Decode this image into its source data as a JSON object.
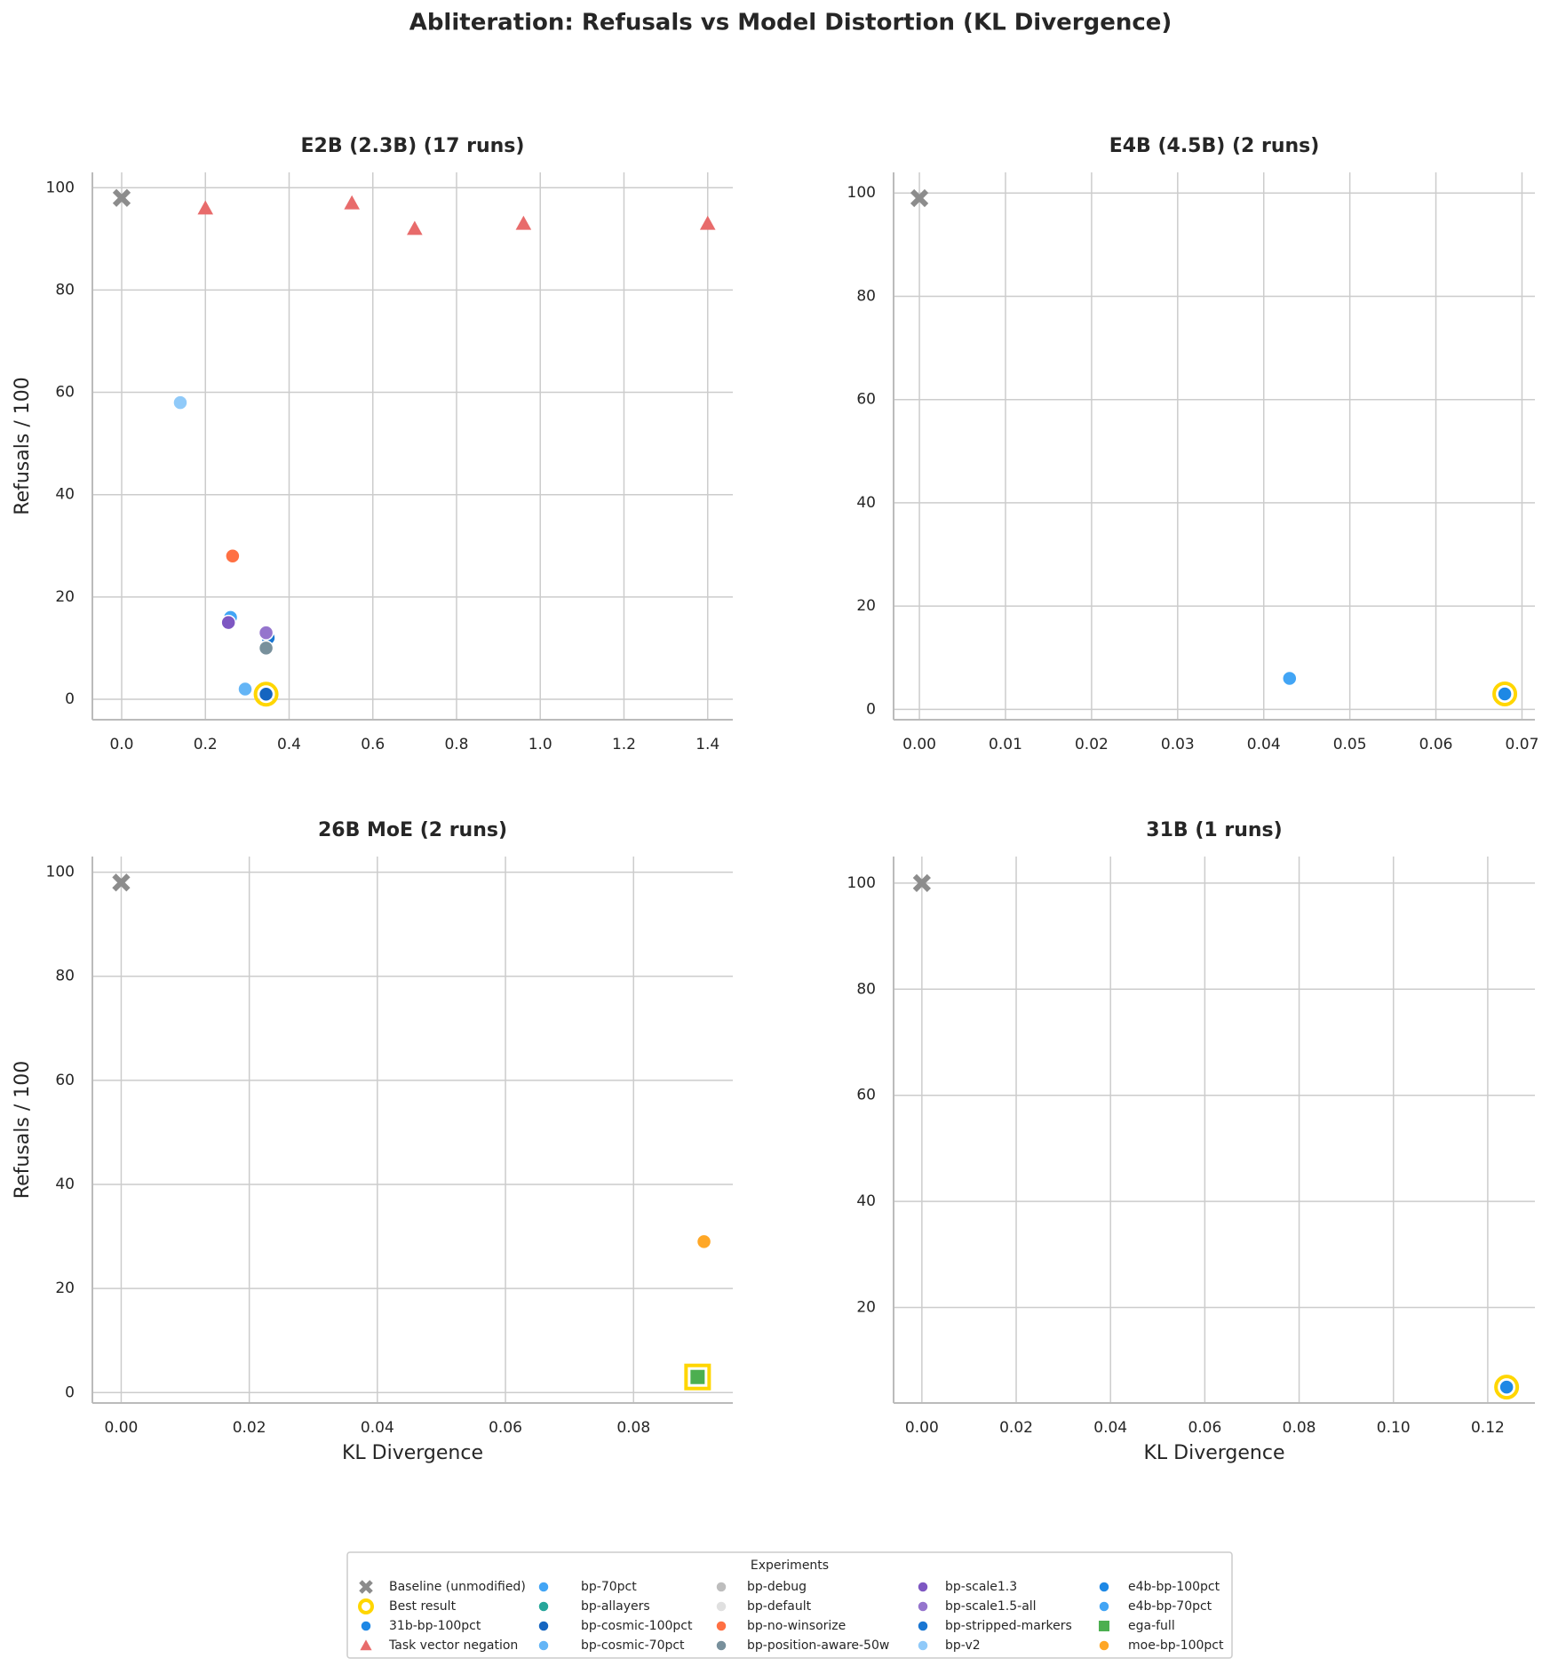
{
  "title": "Abliteration: Refusals vs Model Distortion (KL Divergence)",
  "legend": {
    "title": "Experiments",
    "entries": [
      {
        "name": "Baseline (unmodified)",
        "color": "#8c8c8c",
        "marker": "x"
      },
      {
        "name": "Best result",
        "color": "#ffd600",
        "marker": "ring"
      },
      {
        "name": "31b-bp-100pct",
        "color": "#1e88e5",
        "marker": "circle"
      },
      {
        "name": "Task vector negation",
        "color": "#e86b6b",
        "marker": "triangle"
      },
      {
        "name": "bp-70pct",
        "color": "#42a5f5",
        "marker": "circle"
      },
      {
        "name": "bp-allayers",
        "color": "#26a69a",
        "marker": "circle"
      },
      {
        "name": "bp-cosmic-100pct",
        "color": "#1565c0",
        "marker": "circle"
      },
      {
        "name": "bp-cosmic-70pct",
        "color": "#64b5f6",
        "marker": "circle"
      },
      {
        "name": "bp-debug",
        "color": "#bdbdbd",
        "marker": "circle"
      },
      {
        "name": "bp-default",
        "color": "#e0e0e0",
        "marker": "circle"
      },
      {
        "name": "bp-no-winsorize",
        "color": "#ff7043",
        "marker": "circle"
      },
      {
        "name": "bp-position-aware-50w",
        "color": "#78909c",
        "marker": "circle"
      },
      {
        "name": "bp-scale1.3",
        "color": "#7e57c2",
        "marker": "circle"
      },
      {
        "name": "bp-scale1.5-all",
        "color": "#9575cd",
        "marker": "circle"
      },
      {
        "name": "bp-stripped-markers",
        "color": "#1976d2",
        "marker": "circle"
      },
      {
        "name": "bp-v2",
        "color": "#90caf9",
        "marker": "circle"
      },
      {
        "name": "e4b-bp-100pct",
        "color": "#1e88e5",
        "marker": "circle"
      },
      {
        "name": "e4b-bp-70pct",
        "color": "#42a5f5",
        "marker": "circle"
      },
      {
        "name": "ega-full",
        "color": "#4caf50",
        "marker": "square"
      },
      {
        "name": "moe-bp-100pct",
        "color": "#ffa726",
        "marker": "circle"
      }
    ]
  },
  "chart_data": [
    {
      "type": "scatter",
      "title": "E2B (2.3B)  (17 runs)",
      "ylabel": "Refusals / 100",
      "xlim": [
        -0.07,
        1.46
      ],
      "ylim": [
        -4,
        103
      ],
      "xticks": [
        {
          "value": 0,
          "label": "0.0"
        },
        0.2,
        0.4,
        0.6,
        0.8,
        {
          "value": 1,
          "label": "1.0"
        },
        1.2,
        1.4
      ],
      "yticks": [
        0,
        20,
        40,
        60,
        80,
        100
      ],
      "grid": true,
      "series": [
        {
          "color": "#e86b6b",
          "marker": "triangle",
          "x": [
            0.2,
            0.55,
            0.7,
            0.96,
            1.4
          ],
          "values": [
            96,
            97,
            92,
            93,
            93
          ]
        },
        {
          "color": "#90caf9",
          "marker": "circle",
          "x": [
            0.14
          ],
          "values": [
            58
          ]
        },
        {
          "color": "#ff7043",
          "marker": "circle",
          "x": [
            0.265
          ],
          "values": [
            28
          ]
        },
        {
          "color": "#26a69a",
          "marker": "circle",
          "x": [
            0.26
          ],
          "values": [
            16
          ]
        },
        {
          "color": "#42a5f5",
          "marker": "circle",
          "x": [
            0.26
          ],
          "values": [
            16
          ]
        },
        {
          "color": "#7e57c2",
          "marker": "circle",
          "x": [
            0.255
          ],
          "values": [
            15
          ]
        },
        {
          "color": "#1976d2",
          "marker": "circle",
          "x": [
            0.35
          ],
          "values": [
            12
          ]
        },
        {
          "color": "#9575cd",
          "marker": "circle",
          "x": [
            0.345
          ],
          "values": [
            13
          ]
        },
        {
          "color": "#78909c",
          "marker": "circle",
          "x": [
            0.345
          ],
          "values": [
            10
          ]
        },
        {
          "color": "#64b5f6",
          "marker": "circle",
          "x": [
            0.295
          ],
          "values": [
            2
          ]
        },
        {
          "color": "#bdbdbd",
          "marker": "circle",
          "x": [
            0.345
          ],
          "values": [
            1
          ]
        },
        {
          "color": "#e0e0e0",
          "marker": "circle",
          "x": [
            0.345
          ],
          "values": [
            1
          ]
        },
        {
          "color": "#1565c0",
          "marker": "circle",
          "x": [
            0.345
          ],
          "values": [
            1
          ],
          "best": true
        },
        {
          "color": "#8c8c8c",
          "marker": "x",
          "x": [
            0
          ],
          "values": [
            98
          ]
        }
      ]
    },
    {
      "type": "scatter",
      "title": "E4B (4.5B)  (2 runs)",
      "xlim": [
        -0.003,
        0.0715
      ],
      "ylim": [
        -2,
        104
      ],
      "xticks": [
        {
          "value": 0,
          "label": "0.00"
        },
        0.01,
        0.02,
        0.03,
        0.04,
        0.05,
        0.06,
        0.07
      ],
      "yticks": [
        0,
        20,
        40,
        60,
        80,
        100
      ],
      "grid": true,
      "series": [
        {
          "color": "#42a5f5",
          "marker": "circle",
          "x": [
            0.043
          ],
          "values": [
            6
          ]
        },
        {
          "color": "#1e88e5",
          "marker": "circle",
          "x": [
            0.068
          ],
          "values": [
            3
          ],
          "best": true
        },
        {
          "color": "#8c8c8c",
          "marker": "x",
          "x": [
            0
          ],
          "values": [
            99
          ]
        }
      ]
    },
    {
      "type": "scatter",
      "title": "26B MoE  (2 runs)",
      "xlabel": "KL Divergence",
      "ylabel": "Refusals / 100",
      "xlim": [
        -0.0045,
        0.0955
      ],
      "ylim": [
        -2,
        103
      ],
      "xticks": [
        {
          "value": 0,
          "label": "0.00"
        },
        0.02,
        0.04,
        0.06,
        0.08
      ],
      "yticks": [
        0,
        20,
        40,
        60,
        80,
        100
      ],
      "grid": true,
      "series": [
        {
          "color": "#ffa726",
          "marker": "circle",
          "x": [
            0.091
          ],
          "values": [
            29
          ]
        },
        {
          "color": "#4caf50",
          "marker": "square",
          "x": [
            0.09
          ],
          "values": [
            3
          ],
          "best": true
        },
        {
          "color": "#8c8c8c",
          "marker": "x",
          "x": [
            0
          ],
          "values": [
            98
          ]
        }
      ]
    },
    {
      "type": "scatter",
      "title": "31B  (1 runs)",
      "xlabel": "KL Divergence",
      "xlim": [
        -0.006,
        0.13
      ],
      "ylim": [
        2,
        105
      ],
      "xticks": [
        {
          "value": 0,
          "label": "0.00"
        },
        0.02,
        0.04,
        0.06,
        0.08,
        {
          "value": 0.1,
          "label": "0.10"
        },
        0.12
      ],
      "yticks": [
        20,
        40,
        60,
        80,
        100
      ],
      "grid": true,
      "series": [
        {
          "color": "#1e88e5",
          "marker": "circle",
          "x": [
            0.124
          ],
          "values": [
            5
          ],
          "best": true
        },
        {
          "color": "#8c8c8c",
          "marker": "x",
          "x": [
            0
          ],
          "values": [
            100
          ]
        }
      ]
    }
  ]
}
